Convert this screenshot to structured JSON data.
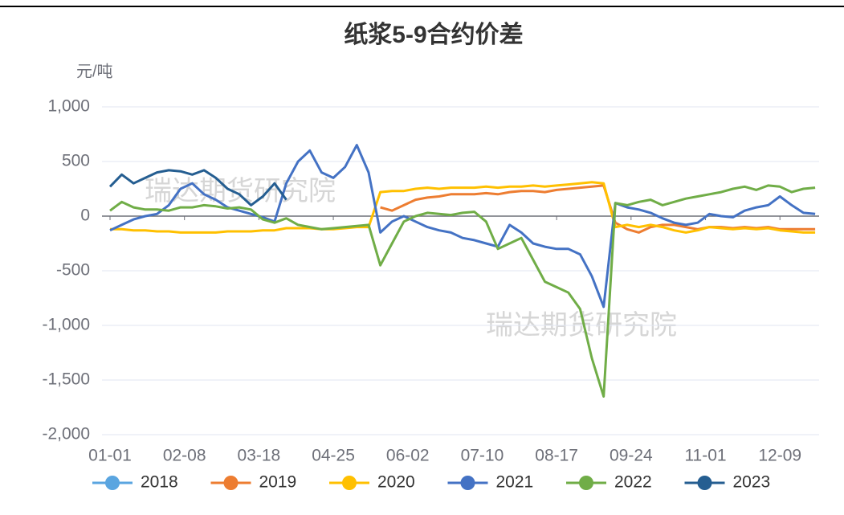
{
  "chart_data": {
    "type": "line",
    "title": "纸浆5-9合约价差",
    "y_label": "元/吨",
    "watermark": "瑞达期货研究院",
    "xlim": [
      0,
      362
    ],
    "xticks": [
      {
        "value": 0,
        "label": "01-01"
      },
      {
        "value": 38,
        "label": "02-08"
      },
      {
        "value": 76,
        "label": "03-18"
      },
      {
        "value": 114,
        "label": "04-25"
      },
      {
        "value": 152,
        "label": "06-02"
      },
      {
        "value": 190,
        "label": "07-10"
      },
      {
        "value": 228,
        "label": "08-17"
      },
      {
        "value": 266,
        "label": "09-24"
      },
      {
        "value": 304,
        "label": "11-01"
      },
      {
        "value": 342,
        "label": "12-09"
      }
    ],
    "ylim": [
      -2000,
      1000
    ],
    "yticks": [
      {
        "value": -2000,
        "label": "-2,000"
      },
      {
        "value": -1500,
        "label": "-1,500"
      },
      {
        "value": -1000,
        "label": "-1,000"
      },
      -500,
      0,
      500,
      {
        "value": 1000,
        "label": "1,000"
      }
    ],
    "grid": true,
    "legend": "bottom",
    "x": [
      0,
      6,
      12,
      18,
      24,
      30,
      36,
      42,
      48,
      54,
      60,
      66,
      72,
      78,
      84,
      90,
      96,
      102,
      108,
      114,
      120,
      126,
      132,
      138,
      144,
      150,
      156,
      162,
      168,
      174,
      180,
      186,
      192,
      198,
      204,
      210,
      216,
      222,
      228,
      234,
      240,
      246,
      252,
      258,
      264,
      270,
      276,
      282,
      288,
      294,
      300,
      306,
      312,
      318,
      324,
      330,
      336,
      342,
      348,
      354,
      360
    ],
    "series": [
      {
        "name": "2018",
        "color": "#5aa5e0",
        "values": [
          null,
          null,
          null,
          null,
          null,
          null,
          null,
          null,
          null,
          null,
          null,
          null,
          null,
          null,
          null,
          null,
          null,
          null,
          null,
          null,
          null,
          null,
          null,
          null,
          null,
          null,
          null,
          null,
          null,
          null,
          null,
          null,
          null,
          null,
          null,
          null,
          null,
          null,
          null,
          null,
          null,
          null,
          null,
          null,
          null,
          null,
          null,
          null,
          null,
          null,
          null,
          null,
          null,
          null,
          null,
          null,
          null,
          null,
          null,
          null,
          null
        ]
      },
      {
        "name": "2019",
        "color": "#ed7d31",
        "values": [
          null,
          null,
          null,
          null,
          null,
          null,
          null,
          null,
          null,
          null,
          null,
          null,
          null,
          null,
          null,
          null,
          null,
          null,
          null,
          null,
          null,
          null,
          null,
          80,
          50,
          100,
          150,
          170,
          180,
          200,
          200,
          200,
          210,
          200,
          220,
          230,
          230,
          220,
          240,
          250,
          260,
          270,
          280,
          -60,
          -120,
          -150,
          -100,
          -80,
          -80,
          -100,
          -120,
          -100,
          -100,
          -110,
          -100,
          -110,
          -100,
          -120,
          -120,
          -120,
          -120
        ]
      },
      {
        "name": "2020",
        "color": "#ffc000",
        "values": [
          -120,
          -120,
          -130,
          -130,
          -140,
          -140,
          -150,
          -150,
          -150,
          -150,
          -140,
          -140,
          -140,
          -130,
          -130,
          -110,
          -110,
          -110,
          -120,
          -120,
          -110,
          -100,
          -100,
          220,
          230,
          230,
          250,
          260,
          250,
          260,
          260,
          260,
          270,
          260,
          270,
          270,
          280,
          270,
          280,
          290,
          300,
          310,
          300,
          -100,
          -80,
          -100,
          -80,
          -100,
          -130,
          -150,
          -130,
          -100,
          -110,
          -120,
          -110,
          -120,
          -110,
          -130,
          -140,
          -150,
          -150
        ]
      },
      {
        "name": "2021",
        "color": "#4472c4",
        "values": [
          -130,
          -80,
          -30,
          0,
          20,
          100,
          250,
          300,
          200,
          150,
          80,
          50,
          20,
          -10,
          -50,
          300,
          500,
          600,
          400,
          350,
          450,
          650,
          400,
          -150,
          -50,
          0,
          -50,
          -100,
          -130,
          -150,
          -200,
          -220,
          -250,
          -280,
          -80,
          -150,
          -250,
          -280,
          -300,
          -300,
          -350,
          -550,
          -830,
          120,
          80,
          60,
          30,
          -20,
          -60,
          -80,
          -60,
          20,
          0,
          -10,
          50,
          80,
          100,
          180,
          100,
          30,
          20
        ]
      },
      {
        "name": "2022",
        "color": "#70ad47",
        "values": [
          50,
          130,
          80,
          60,
          60,
          50,
          80,
          80,
          100,
          90,
          70,
          80,
          60,
          -30,
          -60,
          -20,
          -80,
          -100,
          -120,
          -110,
          -100,
          -90,
          -80,
          -450,
          -250,
          -50,
          0,
          30,
          20,
          10,
          30,
          40,
          -50,
          -300,
          -250,
          -200,
          -400,
          -600,
          -650,
          -700,
          -850,
          -1300,
          -1650,
          120,
          100,
          130,
          150,
          100,
          130,
          160,
          180,
          200,
          220,
          250,
          270,
          240,
          280,
          270,
          220,
          250,
          260
        ]
      },
      {
        "name": "2023",
        "color": "#255e91",
        "values": [
          270,
          380,
          300,
          350,
          400,
          420,
          410,
          380,
          420,
          350,
          250,
          200,
          100,
          180,
          300,
          150,
          null,
          null,
          null,
          null,
          null,
          null,
          null,
          null,
          null,
          null,
          null,
          null,
          null,
          null,
          null,
          null,
          null,
          null,
          null,
          null,
          null,
          null,
          null,
          null,
          null,
          null,
          null,
          null,
          null,
          null,
          null,
          null,
          null,
          null,
          null,
          null,
          null,
          null,
          null,
          null,
          null,
          null,
          null,
          null,
          null
        ]
      }
    ]
  }
}
